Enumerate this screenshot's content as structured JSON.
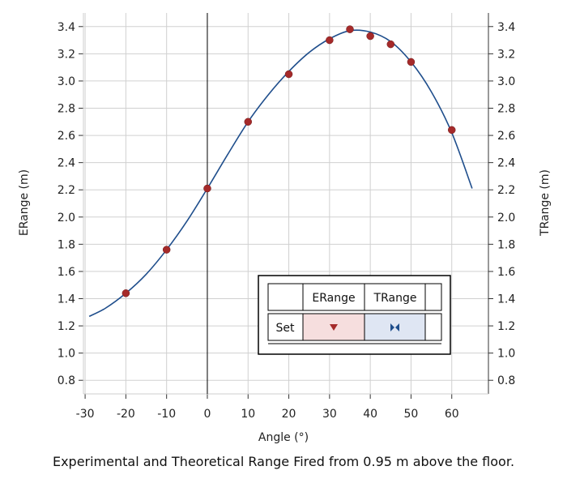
{
  "chart_data": {
    "type": "scatter",
    "caption": "Experimental and Theoretical Range Fired from 0.95 m above the floor.",
    "xlabel": "Angle (°)",
    "ylabel_left": "ERange (m)",
    "ylabel_right": "TRange (m)",
    "xlim": [
      -33,
      69
    ],
    "ylim": [
      0.7,
      3.5
    ],
    "x_ticks": [
      -30,
      -20,
      -10,
      0,
      10,
      20,
      30,
      40,
      50,
      60
    ],
    "y_ticks": [
      0.8,
      1.0,
      1.2,
      1.4,
      1.6,
      1.8,
      2.0,
      2.2,
      2.4,
      2.6,
      2.8,
      3.0,
      3.2,
      3.4
    ],
    "x_tick_labels": [
      "-30",
      "-20",
      "-10",
      "0",
      "10",
      "20",
      "30",
      "40",
      "50",
      "60"
    ],
    "y_tick_labels": [
      "0.8",
      "1.0",
      "1.2",
      "1.4",
      "1.6",
      "1.8",
      "2.0",
      "2.2",
      "2.4",
      "2.6",
      "2.8",
      "3.0",
      "3.2",
      "3.4"
    ],
    "grid": true,
    "series": [
      {
        "name": "ERange",
        "kind": "scatter",
        "color": "#a52a2a",
        "points": [
          [
            -20,
            1.44
          ],
          [
            -10,
            1.76
          ],
          [
            0,
            2.21
          ],
          [
            10,
            2.7
          ],
          [
            20,
            3.05
          ],
          [
            30,
            3.3
          ],
          [
            35,
            3.38
          ],
          [
            40,
            3.33
          ],
          [
            45,
            3.27
          ],
          [
            50,
            3.14
          ],
          [
            60,
            2.64
          ]
        ]
      },
      {
        "name": "TRange",
        "kind": "line",
        "color": "#1f4e8c",
        "points": [
          [
            -29,
            1.27
          ],
          [
            -25,
            1.33
          ],
          [
            -20,
            1.44
          ],
          [
            -15,
            1.58
          ],
          [
            -10,
            1.76
          ],
          [
            -5,
            1.97
          ],
          [
            0,
            2.21
          ],
          [
            5,
            2.46
          ],
          [
            10,
            2.7
          ],
          [
            15,
            2.9
          ],
          [
            20,
            3.07
          ],
          [
            25,
            3.21
          ],
          [
            30,
            3.31
          ],
          [
            35,
            3.37
          ],
          [
            40,
            3.36
          ],
          [
            45,
            3.29
          ],
          [
            50,
            3.14
          ],
          [
            55,
            2.92
          ],
          [
            60,
            2.62
          ],
          [
            65,
            2.21
          ]
        ]
      }
    ],
    "legend": {
      "header_blank": "",
      "row_label": "Set",
      "columns": [
        "ERange",
        "TRange"
      ],
      "erange_color": "#f6dede",
      "trange_color": "#dfe6f3",
      "erange_marker_color": "#a52a2a",
      "trange_marker_color": "#1f4e8c"
    }
  }
}
